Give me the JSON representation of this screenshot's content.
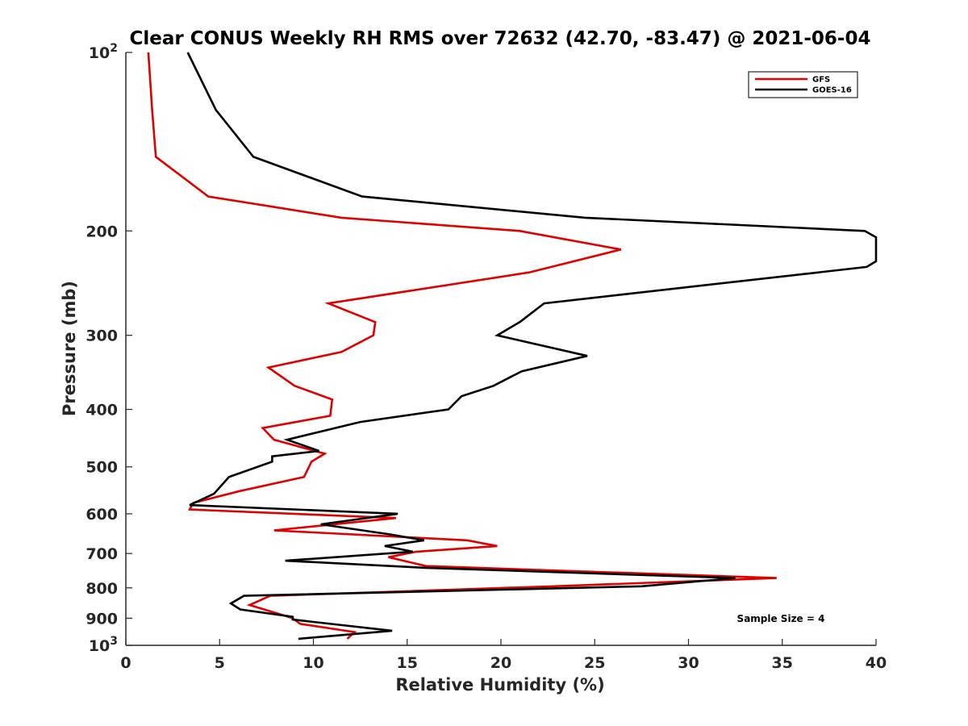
{
  "chart_data": {
    "type": "line",
    "title": "Clear CONUS Weekly RH RMS over 72632 (42.70, -83.47) @ 2021-06-04",
    "xlabel": "Relative Humidity (%)",
    "ylabel": "Pressure (mb)",
    "xlim": [
      0,
      40
    ],
    "ylim": [
      100,
      1000
    ],
    "y_scale": "log",
    "y_reversed": true,
    "x_ticks": [
      0,
      5,
      10,
      15,
      20,
      25,
      30,
      35,
      40
    ],
    "y_ticks": [
      {
        "value": 100,
        "base": "10",
        "exp": "2"
      },
      {
        "value": 200,
        "label": "200"
      },
      {
        "value": 300,
        "label": "300"
      },
      {
        "value": 400,
        "label": "400"
      },
      {
        "value": 500,
        "label": "500"
      },
      {
        "value": 600,
        "label": "600"
      },
      {
        "value": 700,
        "label": "700"
      },
      {
        "value": 800,
        "label": "800"
      },
      {
        "value": 900,
        "label": "900"
      },
      {
        "value": 1000,
        "base": "10",
        "exp": "3"
      }
    ],
    "grid": false,
    "legend_position": "top-right",
    "annotation": "Sample Size = 4",
    "series": [
      {
        "name": "GFS",
        "color": "#e00000",
        "points": [
          [
            1.2,
            100
          ],
          [
            1.4,
            125
          ],
          [
            1.6,
            150
          ],
          [
            4.4,
            175
          ],
          [
            11.5,
            190
          ],
          [
            21.0,
            200
          ],
          [
            26.4,
            215
          ],
          [
            21.5,
            235
          ],
          [
            10.8,
            265
          ],
          [
            13.3,
            285
          ],
          [
            13.2,
            300
          ],
          [
            11.5,
            320
          ],
          [
            7.6,
            340
          ],
          [
            9.0,
            365
          ],
          [
            11.0,
            385
          ],
          [
            10.9,
            410
          ],
          [
            7.3,
            430
          ],
          [
            7.9,
            450
          ],
          [
            10.6,
            475
          ],
          [
            9.9,
            490
          ],
          [
            9.5,
            520
          ],
          [
            6.0,
            550
          ],
          [
            3.6,
            575
          ],
          [
            3.4,
            590
          ],
          [
            14.4,
            610
          ],
          [
            7.9,
            640
          ],
          [
            18.2,
            665
          ],
          [
            19.8,
            680
          ],
          [
            15.5,
            695
          ],
          [
            14.0,
            710
          ],
          [
            16.0,
            735
          ],
          [
            34.7,
            770
          ],
          [
            22.8,
            795
          ],
          [
            7.7,
            825
          ],
          [
            6.6,
            855
          ],
          [
            8.4,
            890
          ],
          [
            8.9,
            900
          ],
          [
            9.3,
            920
          ],
          [
            12.2,
            950
          ],
          [
            11.8,
            975
          ]
        ]
      },
      {
        "name": "GOES-16",
        "color": "#000000",
        "points": [
          [
            3.3,
            100
          ],
          [
            4.8,
            125
          ],
          [
            6.8,
            150
          ],
          [
            12.6,
            175
          ],
          [
            24.5,
            190
          ],
          [
            39.4,
            200
          ],
          [
            40.0,
            205
          ],
          [
            40.0,
            225
          ],
          [
            39.5,
            230
          ],
          [
            22.3,
            265
          ],
          [
            21.0,
            285
          ],
          [
            19.8,
            300
          ],
          [
            24.6,
            325
          ],
          [
            21.1,
            345
          ],
          [
            19.6,
            365
          ],
          [
            17.9,
            380
          ],
          [
            17.2,
            400
          ],
          [
            12.5,
            420
          ],
          [
            8.6,
            450
          ],
          [
            10.3,
            470
          ],
          [
            7.8,
            480
          ],
          [
            7.8,
            490
          ],
          [
            5.5,
            520
          ],
          [
            4.7,
            555
          ],
          [
            3.4,
            580
          ],
          [
            14.5,
            600
          ],
          [
            10.4,
            625
          ],
          [
            14.1,
            650
          ],
          [
            15.9,
            665
          ],
          [
            13.8,
            680
          ],
          [
            15.3,
            695
          ],
          [
            8.5,
            720
          ],
          [
            16.0,
            740
          ],
          [
            32.5,
            770
          ],
          [
            27.5,
            795
          ],
          [
            6.3,
            825
          ],
          [
            5.6,
            850
          ],
          [
            6.1,
            870
          ],
          [
            8.9,
            895
          ],
          [
            8.9,
            905
          ],
          [
            14.2,
            945
          ],
          [
            9.2,
            975
          ]
        ]
      }
    ]
  }
}
